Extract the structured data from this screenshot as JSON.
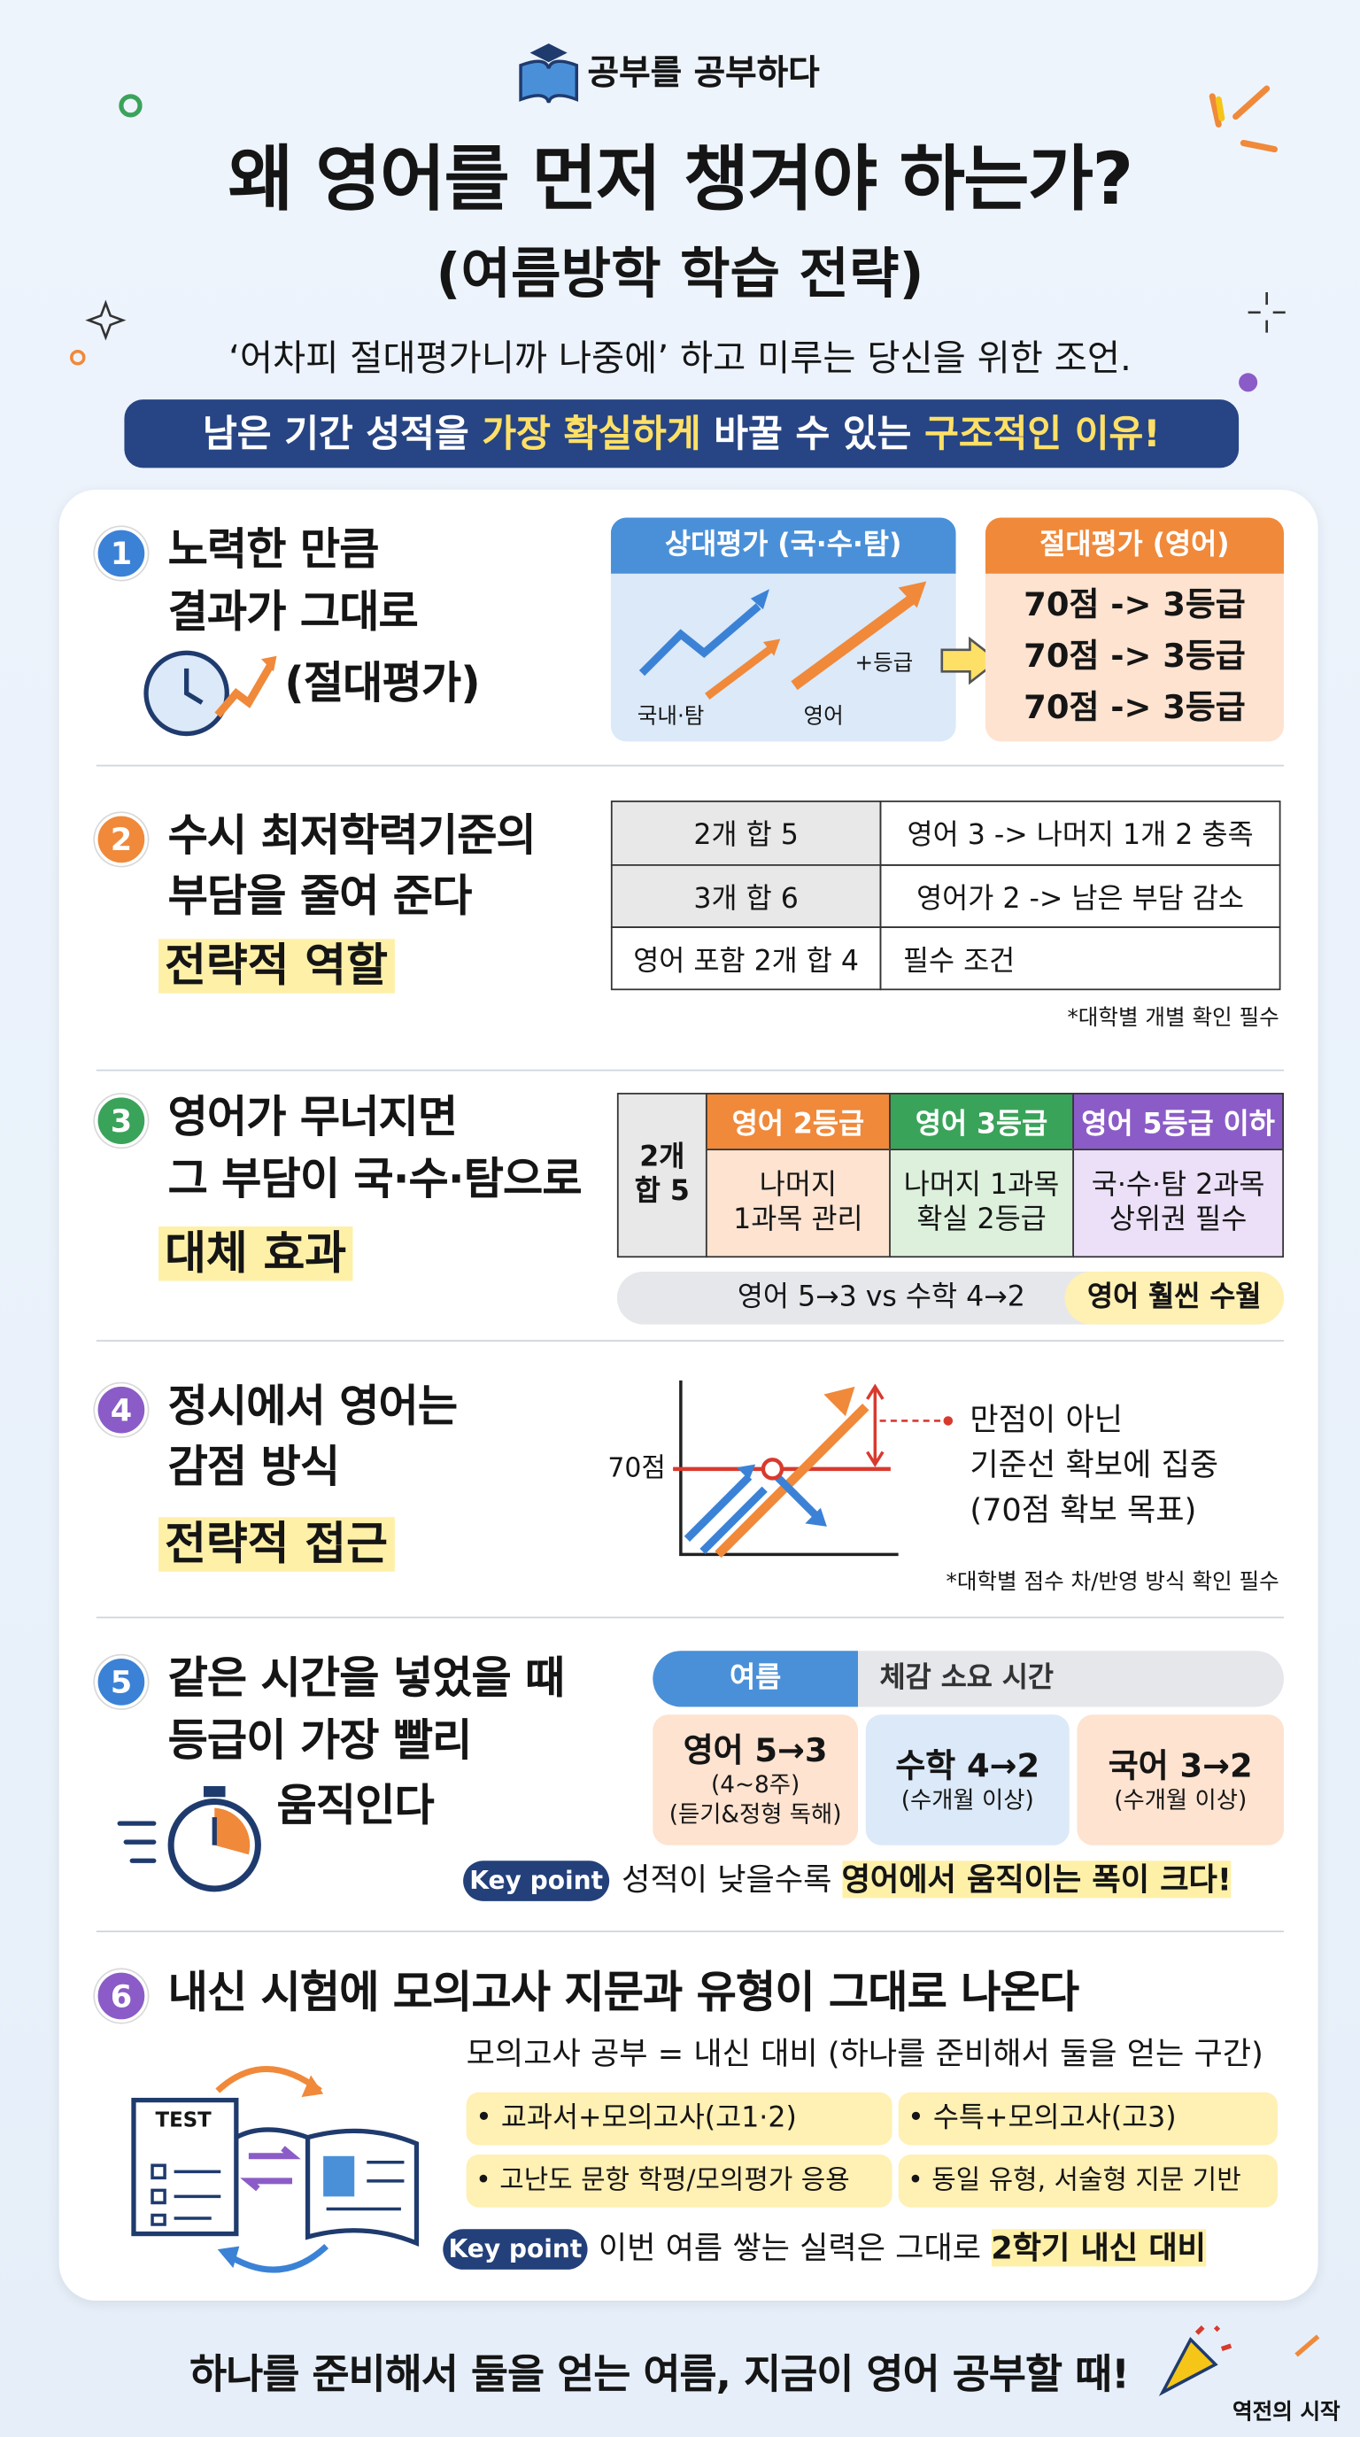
{
  "header": {
    "brand": "공부를 공부하다",
    "title": "왜 영어를 먼저 챙겨야 하는가?",
    "subtitle": "(여름방학 학습 전략)",
    "lead": "‘어차피 절대평가니까 나중에’ 하고 미루는 당신을 위한 조언.",
    "banner": [
      "남은 기간 성적을 ",
      "가장 확실하게",
      " 바꿀 수 있는 ",
      "구조적인 이유!"
    ]
  },
  "sections": [
    {
      "number": "1",
      "title": [
        "노력한 만큼",
        "결과가 그대로"
      ],
      "tag": "(절대평가)",
      "relative": {
        "title": "상대평가 (국·수·탐)",
        "labels": [
          "국내·탐",
          "영어",
          "+등급"
        ]
      },
      "absolute": {
        "title": "절대평가 (영어)",
        "rows": [
          "70점 -> 3등급",
          "70점 -> 3등급",
          "70점 -> 3등급"
        ]
      }
    },
    {
      "number": "2",
      "title": [
        "수시 최저학력기준의",
        "부담을 줄여 준다"
      ],
      "tag": "전략적 역할",
      "table": [
        [
          "2개 합 5",
          "영어 3 -> 나머지 1개 2 충족"
        ],
        [
          "3개 합 6",
          "영어가 2 -> 남은 부담 감소"
        ],
        [
          "영어 포함 2개 합 4",
          "필수 조건"
        ]
      ],
      "note": "*대학별 개별 확인 필수"
    },
    {
      "number": "3",
      "title": [
        "영어가 무너지면",
        "그 부담이 국·수·탐으로"
      ],
      "tag": "대체 효과",
      "row_header": [
        "2개",
        "합 5"
      ],
      "columns": [
        {
          "head": "영어 2등급",
          "body": [
            "나머지",
            "1과목 관리"
          ]
        },
        {
          "head": "영어 3등급",
          "body": [
            "나머지 1과목",
            "확실 2등급"
          ]
        },
        {
          "head": "영어 5등급 이하",
          "body": [
            "국·수·탐 2과목",
            "상위권 필수"
          ]
        }
      ],
      "compare": "영어 5→3 vs 수학 4→2",
      "verdict": "영어 훨씬 수월"
    },
    {
      "number": "4",
      "title": [
        "정시에서 영어는",
        "감점 방식"
      ],
      "tag": "전략적 접근",
      "axis_label": "70점",
      "callout": [
        "만점이 아닌",
        "기준선 확보에 집중",
        "(70점 확보 목표)"
      ],
      "note": "*대학별 점수 차/반영 방식 확인 필수"
    },
    {
      "number": "5",
      "title": [
        "같은 시간을 넣었을 때",
        "등급이 가장 빨리",
        "움직인다"
      ],
      "tabs": [
        "여름",
        "체감 소요 시간"
      ],
      "cards": [
        {
          "head": "영어 5→3",
          "body": [
            "(4~8주)",
            "(듣기&정형 독해)"
          ]
        },
        {
          "head": "수학 4→2",
          "body": [
            "(수개월 이상)"
          ]
        },
        {
          "head": "국어 3→2",
          "body": [
            "(수개월 이상)"
          ]
        }
      ],
      "key_label": "Key point",
      "key_text": [
        "성적이 낮을수록 ",
        "영어에서 움직이는 폭이 크다!"
      ]
    },
    {
      "number": "6",
      "title": [
        "내신 시험에 모의고사 지문과 유형이 그대로 나온다"
      ],
      "icon_label": "TEST",
      "summary": "모의고사 공부 = 내신 대비 (하나를 준비해서 둘을 얻는 구간)",
      "bullets": [
        "• 교과서+모의고사(고1·2)",
        "• 수특+모의고사(고3)",
        "• 고난도 문항 학평/모의평가 응용",
        "• 동일 유형, 서술형 지문 기반"
      ],
      "key_label": "Key point",
      "key_text": [
        "이번 여름 쌓는 실력은 그대로 ",
        "2학기 내신 대비"
      ]
    }
  ],
  "footer": {
    "text": "하나를 준비해서 둘을 얻는 여름, 지금이 영어 공부할 때!",
    "badge": "역전의 시작"
  }
}
